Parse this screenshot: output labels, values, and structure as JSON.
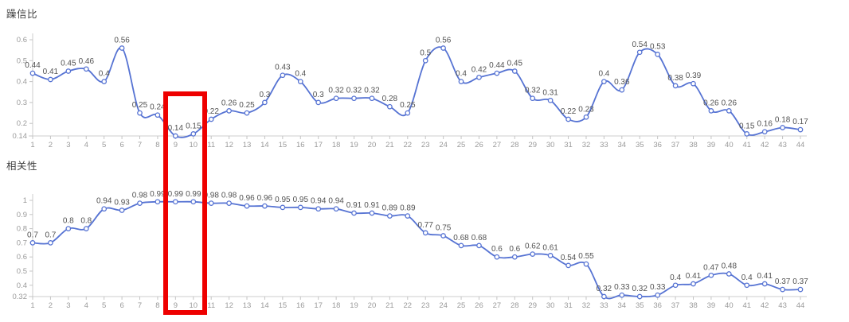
{
  "colors": {
    "line": "#5673d3",
    "marker_fill": "#ffffff",
    "axis": "#cccccc",
    "tick_label": "#9a9a9a",
    "data_label": "#525252",
    "title": "#3f3f3f",
    "highlight": "#ee0000"
  },
  "annotation": {
    "shape": "rectangle",
    "color": "#ee0000",
    "x_start": 9,
    "x_end": 10
  },
  "chart_data": [
    {
      "type": "line",
      "title": "躁信比",
      "x": [
        1,
        2,
        3,
        4,
        5,
        6,
        7,
        8,
        9,
        10,
        11,
        12,
        13,
        14,
        15,
        16,
        17,
        18,
        19,
        20,
        21,
        22,
        23,
        24,
        25,
        26,
        27,
        28,
        29,
        30,
        31,
        32,
        33,
        34,
        35,
        36,
        37,
        38,
        39,
        40,
        41,
        42,
        43,
        44
      ],
      "values": [
        0.44,
        0.41,
        0.45,
        0.46,
        0.4,
        0.56,
        0.25,
        0.24,
        0.14,
        0.15,
        0.22,
        0.26,
        0.25,
        0.3,
        0.43,
        0.4,
        0.3,
        0.32,
        0.32,
        0.32,
        0.28,
        0.25,
        0.5,
        0.56,
        0.4,
        0.42,
        0.44,
        0.45,
        0.32,
        0.31,
        0.22,
        0.23,
        0.4,
        0.36,
        0.54,
        0.53,
        0.38,
        0.39,
        0.26,
        0.26,
        0.15,
        0.16,
        0.18,
        0.17
      ],
      "ylim": [
        0.14,
        0.6
      ],
      "yticks": [
        0.6,
        0.5,
        0.4,
        0.3,
        0.2,
        0.14
      ],
      "grid": false,
      "legend": false,
      "data_labels": true,
      "marker": "open-circle"
    },
    {
      "type": "line",
      "title": "相关性",
      "x": [
        1,
        2,
        3,
        4,
        5,
        6,
        7,
        8,
        9,
        10,
        11,
        12,
        13,
        14,
        15,
        16,
        17,
        18,
        19,
        20,
        21,
        22,
        23,
        24,
        25,
        26,
        27,
        28,
        29,
        30,
        31,
        32,
        33,
        34,
        35,
        36,
        37,
        38,
        39,
        40,
        41,
        42,
        43,
        44
      ],
      "values": [
        0.7,
        0.7,
        0.8,
        0.8,
        0.94,
        0.93,
        0.98,
        0.99,
        0.99,
        0.99,
        0.98,
        0.98,
        0.96,
        0.96,
        0.95,
        0.95,
        0.94,
        0.94,
        0.91,
        0.91,
        0.89,
        0.89,
        0.77,
        0.75,
        0.68,
        0.68,
        0.6,
        0.6,
        0.62,
        0.61,
        0.54,
        0.55,
        0.32,
        0.33,
        0.32,
        0.33,
        0.4,
        0.41,
        0.47,
        0.48,
        0.4,
        0.41,
        0.37,
        0.37
      ],
      "ylim": [
        0.32,
        1
      ],
      "yticks": [
        1,
        0.9,
        0.8,
        0.7,
        0.6,
        0.5,
        0.4,
        0.32
      ],
      "grid": false,
      "legend": false,
      "data_labels": true,
      "marker": "open-circle"
    }
  ]
}
